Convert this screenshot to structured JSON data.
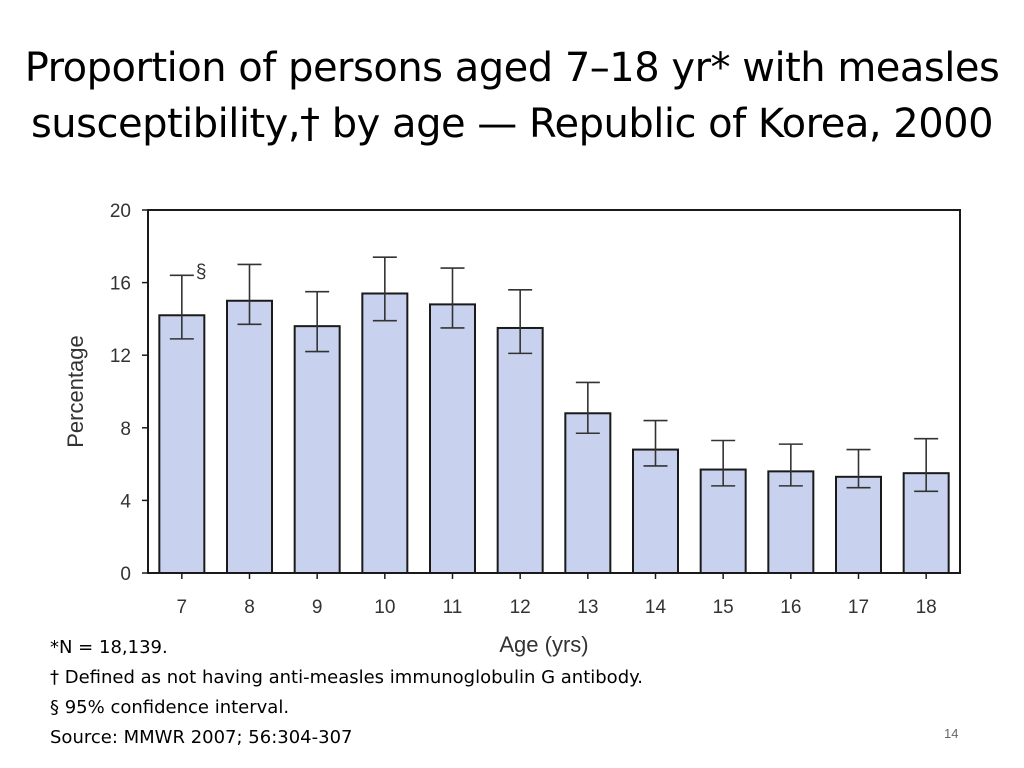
{
  "slide": {
    "title_line1": "Proportion of persons aged 7–18 yr* with measles",
    "title_line2": "susceptibility,† by age — Republic of Korea, 2000",
    "page_number": "14"
  },
  "footnotes": {
    "n": "*N = 18,139.",
    "definition": "† Defined as not having anti-measles immunoglobulin G antibody.",
    "ci": "§ 95% confidence interval.",
    "source": "Source: MMWR 2007; 56:304-307"
  },
  "chart_data": {
    "type": "bar",
    "categories": [
      "7",
      "8",
      "9",
      "10",
      "11",
      "12",
      "13",
      "14",
      "15",
      "16",
      "17",
      "18"
    ],
    "values": [
      14.2,
      15.0,
      13.6,
      15.4,
      14.8,
      13.5,
      8.8,
      6.8,
      5.7,
      5.6,
      5.3,
      5.5
    ],
    "ci_lower": [
      12.9,
      13.7,
      12.2,
      13.9,
      13.5,
      12.1,
      7.7,
      5.9,
      4.8,
      4.8,
      4.7,
      4.5
    ],
    "ci_upper": [
      16.4,
      17.0,
      15.5,
      17.4,
      16.8,
      15.6,
      10.5,
      8.4,
      7.3,
      7.1,
      6.8,
      7.4
    ],
    "annotation": "§",
    "xlabel": "Age (yrs)",
    "ylabel": "Percentage",
    "ylim": [
      0,
      20
    ],
    "yticks": [
      0,
      4,
      8,
      12,
      16,
      20
    ],
    "grid": false,
    "bar_color": "#c8d2ee"
  }
}
